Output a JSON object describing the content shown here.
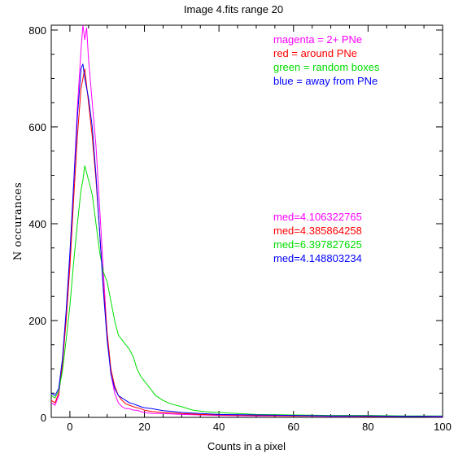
{
  "chart_data": {
    "type": "line",
    "title": "Image 4.fits   range 20",
    "xlabel": "Counts in a pixel",
    "ylabel": "N occurances",
    "xlim": [
      -5,
      100
    ],
    "ylim": [
      0,
      810
    ],
    "xticks": [
      0,
      20,
      40,
      60,
      80,
      100
    ],
    "yticks": [
      0,
      200,
      400,
      600,
      800
    ],
    "grid": false,
    "legend_position": "top-right",
    "series": [
      {
        "name": "magenta = 2+ PNe",
        "color": "#ff00ff",
        "median_label": "med=4.106322765",
        "points": [
          [
            -5,
            30
          ],
          [
            -4,
            25
          ],
          [
            -3,
            45
          ],
          [
            -2,
            110
          ],
          [
            -1,
            210
          ],
          [
            0,
            330
          ],
          [
            1,
            480
          ],
          [
            2,
            640
          ],
          [
            3,
            760
          ],
          [
            3.5,
            810
          ],
          [
            4,
            780
          ],
          [
            4.5,
            805
          ],
          [
            5,
            740
          ],
          [
            6,
            650
          ],
          [
            7,
            560
          ],
          [
            8,
            430
          ],
          [
            9,
            300
          ],
          [
            10,
            170
          ],
          [
            11,
            90
          ],
          [
            12,
            50
          ],
          [
            13,
            30
          ],
          [
            14,
            22
          ],
          [
            15,
            18
          ],
          [
            16,
            18
          ],
          [
            17,
            15
          ],
          [
            18,
            15
          ],
          [
            19,
            12
          ],
          [
            20,
            10
          ],
          [
            22,
            8
          ],
          [
            25,
            8
          ],
          [
            30,
            6
          ],
          [
            35,
            5
          ],
          [
            40,
            4
          ],
          [
            50,
            3
          ],
          [
            60,
            3
          ],
          [
            70,
            2
          ],
          [
            80,
            2
          ],
          [
            90,
            2
          ],
          [
            100,
            1
          ]
        ]
      },
      {
        "name": "red = around PNe",
        "color": "#ff0000",
        "median_label": "med=4.385864258",
        "points": [
          [
            -5,
            35
          ],
          [
            -4,
            30
          ],
          [
            -3,
            50
          ],
          [
            -2,
            110
          ],
          [
            -1,
            200
          ],
          [
            0,
            310
          ],
          [
            1,
            450
          ],
          [
            2,
            580
          ],
          [
            3,
            680
          ],
          [
            3.5,
            700
          ],
          [
            4,
            720
          ],
          [
            5,
            650
          ],
          [
            6,
            580
          ],
          [
            7,
            490
          ],
          [
            8,
            380
          ],
          [
            9,
            270
          ],
          [
            10,
            175
          ],
          [
            11,
            100
          ],
          [
            12,
            65
          ],
          [
            13,
            45
          ],
          [
            14,
            35
          ],
          [
            15,
            28
          ],
          [
            16,
            25
          ],
          [
            17,
            22
          ],
          [
            18,
            20
          ],
          [
            19,
            18
          ],
          [
            20,
            15
          ],
          [
            22,
            12
          ],
          [
            25,
            10
          ],
          [
            30,
            8
          ],
          [
            35,
            6
          ],
          [
            40,
            5
          ],
          [
            50,
            4
          ],
          [
            60,
            3
          ],
          [
            70,
            3
          ],
          [
            80,
            2
          ],
          [
            90,
            2
          ],
          [
            100,
            2
          ]
        ]
      },
      {
        "name": "green = random boxes",
        "color": "#00dd00",
        "median_label": "med=6.397827625",
        "points": [
          [
            -5,
            45
          ],
          [
            -4,
            40
          ],
          [
            -3,
            55
          ],
          [
            -2,
            95
          ],
          [
            -1,
            160
          ],
          [
            0,
            230
          ],
          [
            1,
            320
          ],
          [
            2,
            400
          ],
          [
            3,
            470
          ],
          [
            3.5,
            490
          ],
          [
            4,
            520
          ],
          [
            5,
            490
          ],
          [
            6,
            460
          ],
          [
            7,
            400
          ],
          [
            8,
            340
          ],
          [
            9,
            300
          ],
          [
            10,
            280
          ],
          [
            11,
            240
          ],
          [
            12,
            200
          ],
          [
            13,
            170
          ],
          [
            14,
            160
          ],
          [
            15,
            150
          ],
          [
            16,
            140
          ],
          [
            17,
            125
          ],
          [
            18,
            100
          ],
          [
            19,
            85
          ],
          [
            20,
            75
          ],
          [
            21,
            65
          ],
          [
            22,
            55
          ],
          [
            23,
            45
          ],
          [
            24,
            40
          ],
          [
            25,
            35
          ],
          [
            27,
            28
          ],
          [
            30,
            22
          ],
          [
            33,
            15
          ],
          [
            36,
            12
          ],
          [
            40,
            10
          ],
          [
            45,
            8
          ],
          [
            50,
            6
          ],
          [
            60,
            5
          ],
          [
            70,
            4
          ],
          [
            80,
            4
          ],
          [
            90,
            3
          ],
          [
            100,
            3
          ]
        ]
      },
      {
        "name": "blue = away from PNe",
        "color": "#0000ff",
        "median_label": "med=4.148803234",
        "points": [
          [
            -5,
            50
          ],
          [
            -4,
            45
          ],
          [
            -3,
            60
          ],
          [
            -2,
            120
          ],
          [
            -1,
            220
          ],
          [
            0,
            340
          ],
          [
            1,
            480
          ],
          [
            2,
            620
          ],
          [
            3,
            720
          ],
          [
            3.5,
            730
          ],
          [
            4,
            700
          ],
          [
            5,
            660
          ],
          [
            6,
            600
          ],
          [
            7,
            500
          ],
          [
            8,
            380
          ],
          [
            9,
            260
          ],
          [
            10,
            160
          ],
          [
            11,
            90
          ],
          [
            12,
            60
          ],
          [
            13,
            45
          ],
          [
            14,
            40
          ],
          [
            15,
            35
          ],
          [
            16,
            30
          ],
          [
            17,
            28
          ],
          [
            18,
            25
          ],
          [
            19,
            22
          ],
          [
            20,
            20
          ],
          [
            22,
            18
          ],
          [
            25,
            14
          ],
          [
            28,
            12
          ],
          [
            30,
            10
          ],
          [
            35,
            8
          ],
          [
            40,
            6
          ],
          [
            50,
            5
          ],
          [
            60,
            4
          ],
          [
            70,
            3
          ],
          [
            80,
            3
          ],
          [
            90,
            2
          ],
          [
            100,
            2
          ]
        ]
      }
    ]
  }
}
